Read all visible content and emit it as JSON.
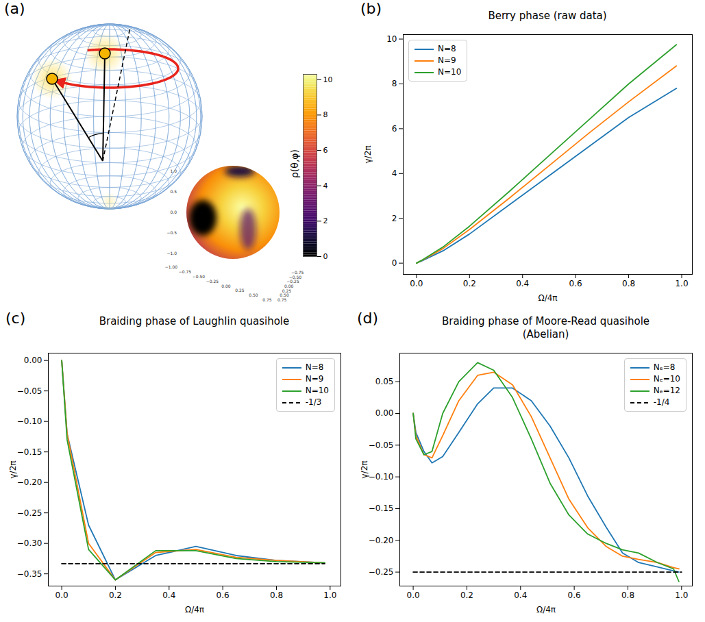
{
  "diagram": {
    "panel": "(a)",
    "colorbar": {
      "label": "ρ(θ,φ)",
      "range": [
        0,
        10.3
      ],
      "ticks": [
        0,
        2,
        4,
        6,
        8,
        10
      ]
    },
    "axes3d": {
      "z_ticks": [
        {
          "value": 1,
          "label": "1.0"
        },
        0.5,
        {
          "value": 0,
          "label": "0.0"
        },
        {
          "value": -0.5,
          "label": "−0.5"
        },
        {
          "value": -1,
          "label": "−1.0"
        }
      ],
      "x_ticks": [
        {
          "value": -1,
          "label": "−1.00"
        },
        {
          "value": -0.75,
          "label": "−0.75"
        },
        {
          "value": -0.5,
          "label": "−0.50"
        },
        {
          "value": -0.25,
          "label": "−0.25"
        },
        {
          "value": 0,
          "label": "0.00"
        },
        0.25,
        {
          "value": 0.5,
          "label": "0.50"
        },
        0.75
      ],
      "y_ticks": [
        {
          "value": -0.75,
          "label": "−0.75"
        },
        {
          "value": -0.5,
          "label": "−0.50"
        },
        {
          "value": -0.25,
          "label": "−0.25"
        },
        {
          "value": 0,
          "label": "0.00"
        },
        0.25,
        {
          "value": 0.5,
          "label": "0.50"
        },
        0.75
      ]
    }
  },
  "chart_data": [
    {
      "panel": "(b)",
      "type": "line",
      "title": "Berry phase (raw data)",
      "x_label": "Ω/4π",
      "y_label": "γ/2π",
      "x": [
        0,
        0.02,
        0.1,
        0.2,
        0.35,
        0.5,
        0.65,
        0.8,
        0.98
      ],
      "xlim": [
        -0.05,
        1.04
      ],
      "xticks": [
        {
          "value": 0,
          "label": "0.0"
        },
        0.2,
        0.4,
        0.6,
        0.8,
        {
          "value": 1,
          "label": "1.0"
        }
      ],
      "ylim": [
        -0.5,
        10.2
      ],
      "yticks": [
        0,
        2,
        4,
        6,
        8,
        10
      ],
      "grid": false,
      "legend": "upper left",
      "series": [
        {
          "name": "N=8",
          "color": "#1f77b4",
          "line_style": "solid",
          "values": [
            0,
            0.1,
            0.55,
            1.3,
            2.6,
            3.9,
            5.2,
            6.5,
            7.8
          ]
        },
        {
          "name": "N=9",
          "color": "#ff7f0e",
          "line_style": "solid",
          "values": [
            0,
            0.12,
            0.65,
            1.5,
            2.9,
            4.35,
            5.8,
            7.2,
            8.8
          ]
        },
        {
          "name": "N=10",
          "color": "#2ca02c",
          "line_style": "solid",
          "values": [
            0,
            0.13,
            0.72,
            1.65,
            3.2,
            4.8,
            6.4,
            8.0,
            9.75
          ]
        }
      ]
    },
    {
      "panel": "(c)",
      "type": "line",
      "title": "Braiding phase of Laughlin quasihole",
      "x_label": "Ω/4π",
      "y_label": "γ/2π",
      "x": [
        0,
        0.02,
        0.1,
        0.2,
        0.35,
        0.5,
        0.65,
        0.8,
        0.98
      ],
      "xlim": [
        -0.05,
        1.04
      ],
      "xticks": [
        {
          "value": 0,
          "label": "0.0"
        },
        0.2,
        0.4,
        0.6,
        0.8,
        {
          "value": 1,
          "label": "1.0"
        }
      ],
      "ylim": [
        -0.37,
        0.012
      ],
      "yticks": [
        {
          "value": 0,
          "label": "0.00"
        },
        {
          "value": -0.05,
          "label": "−0.05"
        },
        {
          "value": -0.1,
          "label": "−0.10"
        },
        {
          "value": -0.15,
          "label": "−0.15"
        },
        {
          "value": -0.2,
          "label": "−0.20"
        },
        {
          "value": -0.25,
          "label": "−0.25"
        },
        {
          "value": -0.3,
          "label": "−0.30"
        },
        {
          "value": -0.35,
          "label": "−0.35"
        }
      ],
      "grid": false,
      "legend": "upper right",
      "series": [
        {
          "name": "N=8",
          "color": "#1f77b4",
          "line_style": "solid",
          "values": [
            0,
            -0.12,
            -0.27,
            -0.36,
            -0.32,
            -0.305,
            -0.32,
            -0.328,
            -0.332
          ]
        },
        {
          "name": "N=9",
          "color": "#ff7f0e",
          "line_style": "solid",
          "values": [
            0,
            -0.12,
            -0.3,
            -0.36,
            -0.315,
            -0.31,
            -0.323,
            -0.328,
            -0.332
          ]
        },
        {
          "name": "N=10",
          "color": "#2ca02c",
          "line_style": "solid",
          "values": [
            0,
            -0.13,
            -0.31,
            -0.36,
            -0.312,
            -0.312,
            -0.325,
            -0.33,
            -0.332
          ]
        },
        {
          "name": "-1/3",
          "color": "#000000",
          "line_style": "dashed",
          "x": [
            0,
            0.98
          ],
          "values": [
            -0.3333,
            -0.3333
          ]
        }
      ]
    },
    {
      "panel": "(d)",
      "type": "line",
      "title": "Braiding phase of Moore-Read quasihole (Abelian)",
      "x_label": "Ω/4π",
      "y_label": "γ/2π",
      "x": [
        0,
        0.01,
        0.04,
        0.07,
        0.11,
        0.17,
        0.24,
        0.3,
        0.37,
        0.44,
        0.51,
        0.58,
        0.65,
        0.72,
        0.78,
        0.84,
        0.91,
        0.97,
        0.99
      ],
      "xlim": [
        -0.05,
        1.04
      ],
      "xticks": [
        {
          "value": 0,
          "label": "0.0"
        },
        0.2,
        0.4,
        0.6,
        0.8,
        {
          "value": 1,
          "label": "1.0"
        }
      ],
      "ylim": [
        -0.272,
        0.095
      ],
      "yticks": [
        0.05,
        {
          "value": 0,
          "label": "0.00"
        },
        {
          "value": -0.05,
          "label": "−0.05"
        },
        {
          "value": -0.1,
          "label": "−0.10"
        },
        {
          "value": -0.15,
          "label": "−0.15"
        },
        {
          "value": -0.2,
          "label": "−0.20"
        },
        {
          "value": -0.25,
          "label": "−0.25"
        }
      ],
      "grid": false,
      "legend": "upper right",
      "series": [
        {
          "name": "Nₑ=8",
          "color": "#1f77b4",
          "line_style": "solid",
          "values": [
            0,
            -0.03,
            -0.06,
            -0.078,
            -0.068,
            -0.03,
            0.015,
            0.04,
            0.04,
            0.02,
            -0.02,
            -0.07,
            -0.13,
            -0.18,
            -0.22,
            -0.235,
            -0.242,
            -0.248,
            -0.25
          ]
        },
        {
          "name": "Nₑ=10",
          "color": "#ff7f0e",
          "line_style": "solid",
          "values": [
            0,
            -0.035,
            -0.065,
            -0.07,
            -0.035,
            0.02,
            0.06,
            0.065,
            0.045,
            -0.005,
            -0.07,
            -0.135,
            -0.18,
            -0.21,
            -0.225,
            -0.23,
            -0.235,
            -0.243,
            -0.245
          ]
        },
        {
          "name": "Nₑ=12",
          "color": "#2ca02c",
          "line_style": "solid",
          "values": [
            0,
            -0.04,
            -0.065,
            -0.06,
            0.0,
            0.05,
            0.08,
            0.068,
            0.025,
            -0.04,
            -0.11,
            -0.16,
            -0.19,
            -0.205,
            -0.215,
            -0.22,
            -0.235,
            -0.245,
            -0.265
          ]
        },
        {
          "name": "-1/4",
          "color": "#000000",
          "line_style": "dashed",
          "x": [
            0,
            1
          ],
          "values": [
            -0.25,
            -0.25
          ]
        }
      ]
    }
  ]
}
